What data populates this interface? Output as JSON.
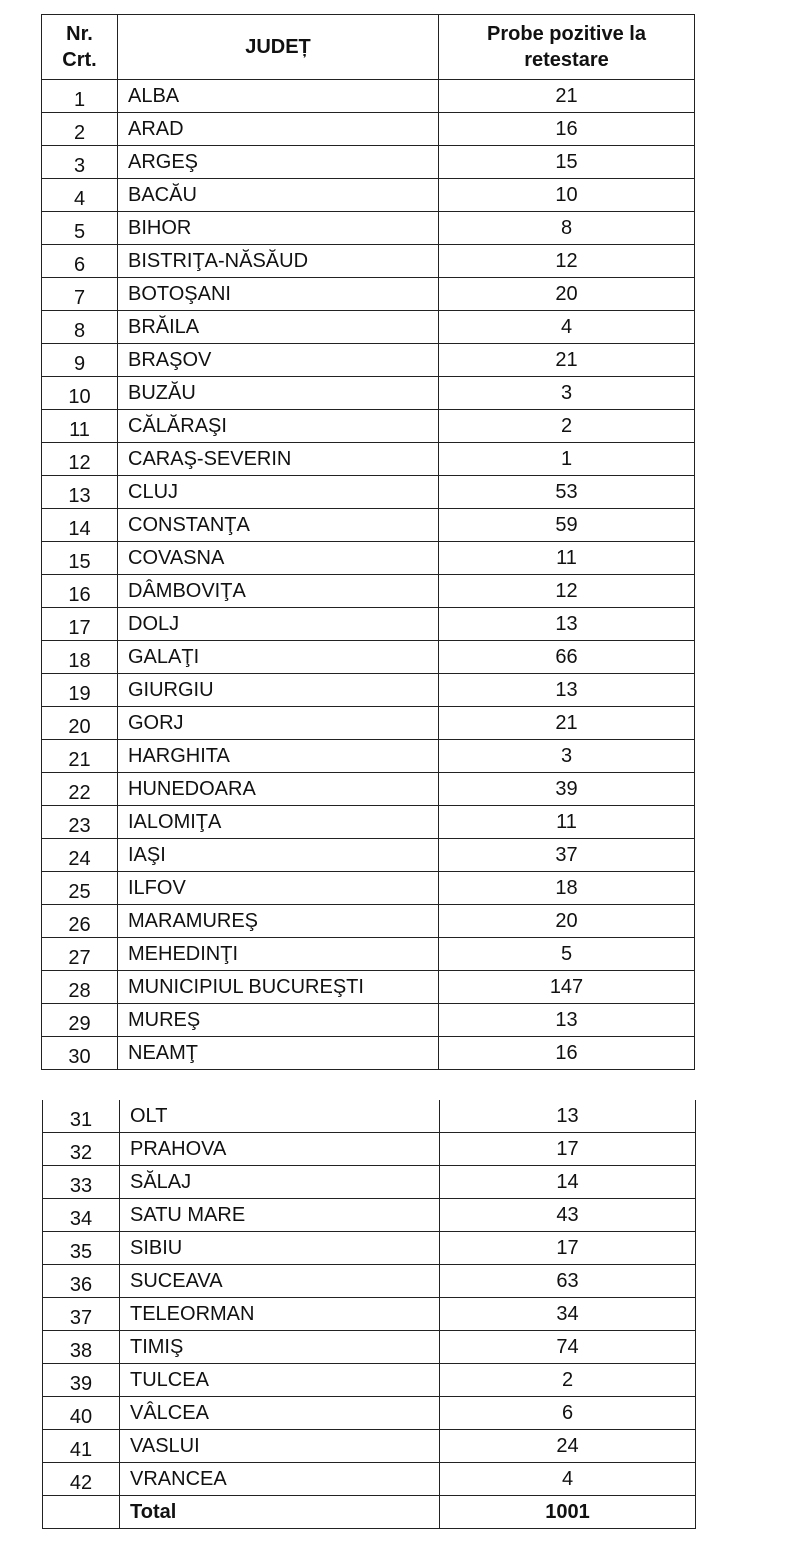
{
  "header": {
    "nr": "Nr.",
    "crt": "Crt.",
    "judet": "JUDEȚ",
    "probe_line1": "Probe pozitive la",
    "probe_line2": "retestare"
  },
  "rows": [
    {
      "nr": "1",
      "judet": "ALBA",
      "probe": "21"
    },
    {
      "nr": "2",
      "judet": "ARAD",
      "probe": "16"
    },
    {
      "nr": "3",
      "judet": "ARGEŞ",
      "probe": "15"
    },
    {
      "nr": "4",
      "judet": "BACĂU",
      "probe": "10"
    },
    {
      "nr": "5",
      "judet": "BIHOR",
      "probe": "8"
    },
    {
      "nr": "6",
      "judet": "BISTRIŢA-NĂSĂUD",
      "probe": "12"
    },
    {
      "nr": "7",
      "judet": "BOTOŞANI",
      "probe": "20"
    },
    {
      "nr": "8",
      "judet": "BRĂILA",
      "probe": "4"
    },
    {
      "nr": "9",
      "judet": "BRAŞOV",
      "probe": "21"
    },
    {
      "nr": "10",
      "judet": "BUZĂU",
      "probe": "3"
    },
    {
      "nr": "11",
      "judet": "CĂLĂRAŞI",
      "probe": "2"
    },
    {
      "nr": "12",
      "judet": "CARAŞ-SEVERIN",
      "probe": "1"
    },
    {
      "nr": "13",
      "judet": "CLUJ",
      "probe": "53"
    },
    {
      "nr": "14",
      "judet": "CONSTANŢA",
      "probe": "59"
    },
    {
      "nr": "15",
      "judet": "COVASNA",
      "probe": "11"
    },
    {
      "nr": "16",
      "judet": "DÂMBOVIŢA",
      "probe": "12"
    },
    {
      "nr": "17",
      "judet": "DOLJ",
      "probe": "13"
    },
    {
      "nr": "18",
      "judet": "GALAŢI",
      "probe": "66"
    },
    {
      "nr": "19",
      "judet": "GIURGIU",
      "probe": "13"
    },
    {
      "nr": "20",
      "judet": "GORJ",
      "probe": "21"
    },
    {
      "nr": "21",
      "judet": "HARGHITA",
      "probe": "3"
    },
    {
      "nr": "22",
      "judet": "HUNEDOARA",
      "probe": "39"
    },
    {
      "nr": "23",
      "judet": "IALOMIŢA",
      "probe": "11"
    },
    {
      "nr": "24",
      "judet": "IAŞI",
      "probe": "37"
    },
    {
      "nr": "25",
      "judet": "ILFOV",
      "probe": "18"
    },
    {
      "nr": "26",
      "judet": "MARAMUREŞ",
      "probe": "20"
    },
    {
      "nr": "27",
      "judet": "MEHEDINŢI",
      "probe": "5"
    },
    {
      "nr": "28",
      "judet": "MUNICIPIUL BUCUREŞTI",
      "probe": "147"
    },
    {
      "nr": "29",
      "judet": "MUREŞ",
      "probe": "13"
    },
    {
      "nr": "30",
      "judet": "NEAMŢ",
      "probe": "16"
    },
    {
      "nr": "31",
      "judet": "OLT",
      "probe": "13"
    },
    {
      "nr": "32",
      "judet": "PRAHOVA",
      "probe": "17"
    },
    {
      "nr": "33",
      "judet": "SĂLAJ",
      "probe": "14"
    },
    {
      "nr": "34",
      "judet": "SATU MARE",
      "probe": "43"
    },
    {
      "nr": "35",
      "judet": "SIBIU",
      "probe": "17"
    },
    {
      "nr": "36",
      "judet": "SUCEAVA",
      "probe": "63"
    },
    {
      "nr": "37",
      "judet": "TELEORMAN",
      "probe": "34"
    },
    {
      "nr": "38",
      "judet": "TIMIŞ",
      "probe": "74"
    },
    {
      "nr": "39",
      "judet": "TULCEA",
      "probe": "2"
    },
    {
      "nr": "40",
      "judet": "VÂLCEA",
      "probe": "6"
    },
    {
      "nr": "41",
      "judet": "VASLUI",
      "probe": "24"
    },
    {
      "nr": "42",
      "judet": "VRANCEA",
      "probe": "4"
    }
  ],
  "total": {
    "label": "Total",
    "value": "1001"
  }
}
